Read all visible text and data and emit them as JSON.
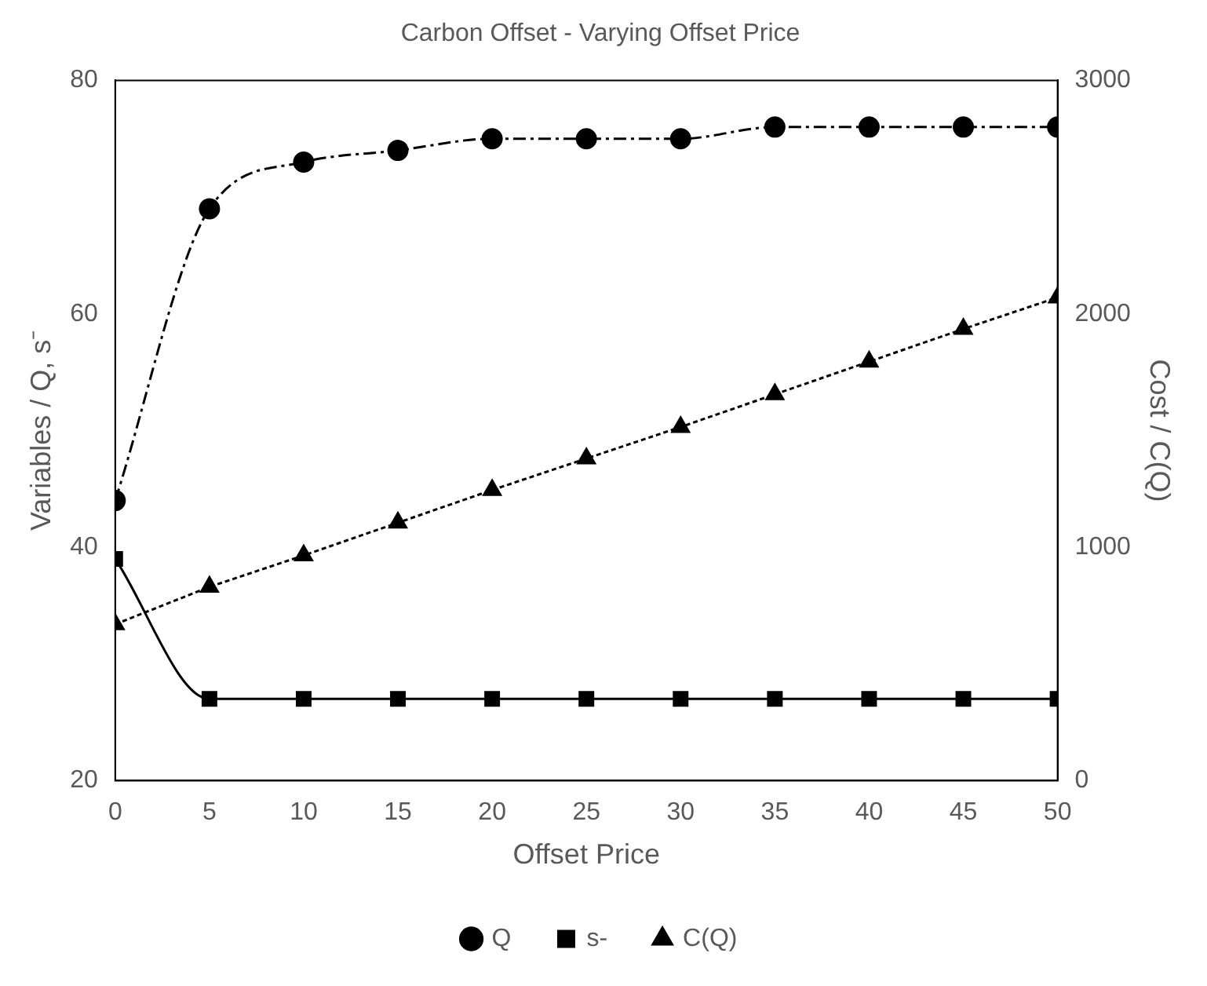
{
  "chart_data": {
    "type": "line",
    "title": "Carbon Offset - Varying Offset Price",
    "xlabel": "Offset Price",
    "ylabel": "Variables / Q, s⁻",
    "y2label": "Cost / C(Q)",
    "x": [
      0,
      5,
      10,
      15,
      20,
      25,
      30,
      35,
      40,
      45,
      50
    ],
    "xlim": [
      0,
      50
    ],
    "xticks": [
      0,
      5,
      10,
      15,
      20,
      25,
      30,
      35,
      40,
      45,
      50
    ],
    "ylim": [
      20,
      80
    ],
    "yticks": [
      20,
      40,
      60,
      80
    ],
    "y2lim": [
      0,
      3000
    ],
    "y2ticks": [
      0,
      1000,
      2000,
      3000
    ],
    "grid": false,
    "legend": "bottom",
    "series": [
      {
        "name": "Q",
        "color": "#000000",
        "marker": "circle",
        "line_style": "dashed",
        "values": [
          44,
          69,
          73,
          74,
          75,
          75,
          75,
          76,
          76,
          76,
          76
        ]
      },
      {
        "name": "s-",
        "color": "#000000",
        "marker": "square",
        "line_style": "solid",
        "values": [
          39,
          27,
          27,
          27,
          27,
          27,
          27,
          27,
          27,
          27,
          27
        ]
      },
      {
        "name": "C(Q)",
        "color": "#000000",
        "marker": "triangle",
        "line_style": "dotted",
        "axis": "y2",
        "values": [
          670,
          830,
          965,
          1105,
          1245,
          1380,
          1515,
          1655,
          1795,
          1935,
          2070
        ]
      }
    ]
  }
}
